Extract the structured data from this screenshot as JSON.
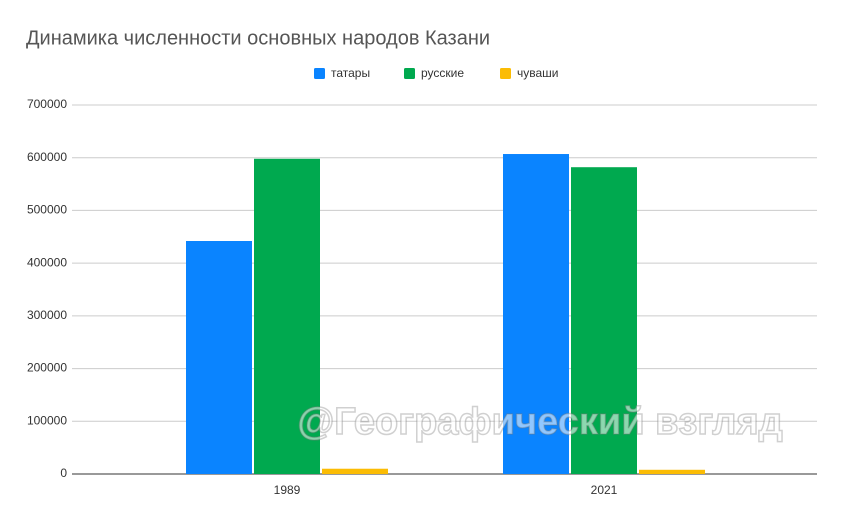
{
  "chart_data": {
    "type": "bar",
    "title": "Динамика численности основных народов Казани",
    "categories": [
      "1989",
      "2021"
    ],
    "series": [
      {
        "name": "татары",
        "color": "#0a84ff",
        "values": [
          442000,
          607000
        ]
      },
      {
        "name": "русские",
        "color": "#00a94f",
        "values": [
          598000,
          582000
        ]
      },
      {
        "name": "чуваши",
        "color": "#fbbc04",
        "values": [
          10000,
          8000
        ]
      }
    ],
    "ylim": [
      0,
      700000
    ],
    "yticks": [
      0,
      100000,
      200000,
      300000,
      400000,
      500000,
      600000,
      700000
    ],
    "grid": true,
    "legend": "top",
    "watermark": "@Географический взгляд"
  }
}
